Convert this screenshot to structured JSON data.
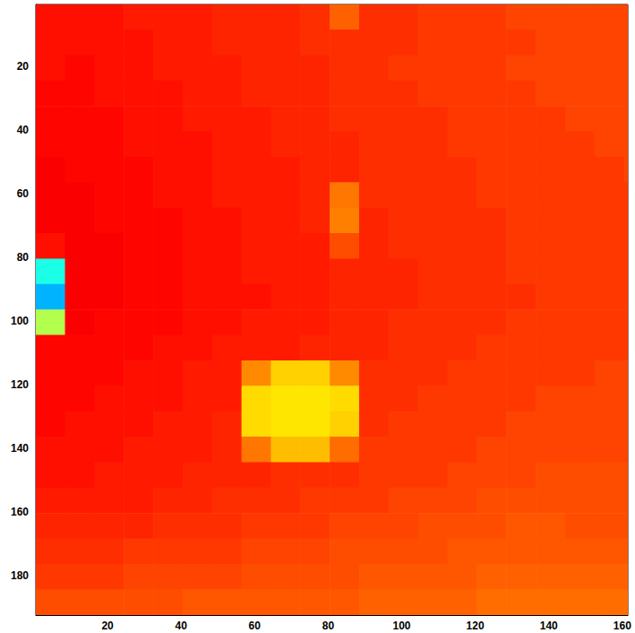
{
  "chart_data": {
    "type": "heatmap",
    "xlim": [
      0.5,
      161.5
    ],
    "ylim": [
      0.5,
      192.5
    ],
    "xticks": [
      20,
      40,
      60,
      80,
      100,
      120,
      140,
      160
    ],
    "yticks": [
      20,
      40,
      60,
      80,
      100,
      120,
      140,
      160,
      180
    ],
    "grid": false,
    "clim": [
      0,
      1
    ],
    "cell_x": [
      4.5,
      12.5,
      20.5,
      28.5,
      36.5,
      44.5,
      52.5,
      60.5,
      68.5,
      76.5,
      84.5,
      92.5,
      100.5,
      108.5,
      116.5,
      124.5,
      132.5,
      140.5,
      148.5,
      156.5,
      164.5
    ],
    "cell_y": [
      4.5,
      12.5,
      20.5,
      28.5,
      36.5,
      44.5,
      52.5,
      60.5,
      68.5,
      76.5,
      84.5,
      92.5,
      100.5,
      108.5,
      116.5,
      124.5,
      132.5,
      140.5,
      148.5,
      156.5,
      164.5,
      172.5,
      180.5,
      188.5
    ],
    "cells": [
      [
        0.86,
        0.86,
        0.86,
        0.85,
        0.85,
        0.85,
        0.84,
        0.84,
        0.84,
        0.83,
        0.78,
        0.83,
        0.83,
        0.82,
        0.82,
        0.82,
        0.81,
        0.81,
        0.81,
        0.81,
        0.81
      ],
      [
        0.86,
        0.86,
        0.86,
        0.86,
        0.85,
        0.85,
        0.84,
        0.84,
        0.84,
        0.83,
        0.83,
        0.83,
        0.83,
        0.82,
        0.82,
        0.82,
        0.82,
        0.81,
        0.81,
        0.81,
        0.81
      ],
      [
        0.86,
        0.87,
        0.86,
        0.86,
        0.85,
        0.85,
        0.85,
        0.84,
        0.84,
        0.84,
        0.83,
        0.83,
        0.82,
        0.82,
        0.82,
        0.82,
        0.81,
        0.81,
        0.81,
        0.81,
        0.81
      ],
      [
        0.87,
        0.87,
        0.86,
        0.86,
        0.86,
        0.85,
        0.85,
        0.84,
        0.84,
        0.84,
        0.83,
        0.83,
        0.83,
        0.82,
        0.82,
        0.82,
        0.82,
        0.81,
        0.81,
        0.81,
        0.81
      ],
      [
        0.87,
        0.87,
        0.87,
        0.86,
        0.86,
        0.85,
        0.85,
        0.85,
        0.84,
        0.84,
        0.83,
        0.83,
        0.83,
        0.83,
        0.82,
        0.82,
        0.82,
        0.82,
        0.81,
        0.81,
        0.81
      ],
      [
        0.87,
        0.87,
        0.87,
        0.86,
        0.86,
        0.86,
        0.85,
        0.85,
        0.84,
        0.84,
        0.84,
        0.83,
        0.83,
        0.83,
        0.82,
        0.82,
        0.82,
        0.82,
        0.82,
        0.81,
        0.81
      ],
      [
        0.88,
        0.87,
        0.87,
        0.87,
        0.86,
        0.86,
        0.85,
        0.85,
        0.85,
        0.84,
        0.84,
        0.83,
        0.83,
        0.83,
        0.83,
        0.82,
        0.82,
        0.82,
        0.82,
        0.82,
        0.81
      ],
      [
        0.88,
        0.88,
        0.87,
        0.87,
        0.86,
        0.86,
        0.85,
        0.85,
        0.85,
        0.84,
        0.76,
        0.83,
        0.83,
        0.83,
        0.83,
        0.82,
        0.82,
        0.82,
        0.82,
        0.82,
        0.82
      ],
      [
        0.88,
        0.88,
        0.87,
        0.87,
        0.87,
        0.86,
        0.86,
        0.85,
        0.85,
        0.84,
        0.75,
        0.84,
        0.83,
        0.83,
        0.83,
        0.83,
        0.82,
        0.82,
        0.82,
        0.82,
        0.82
      ],
      [
        0.86,
        0.88,
        0.88,
        0.87,
        0.87,
        0.86,
        0.86,
        0.85,
        0.85,
        0.85,
        0.8,
        0.84,
        0.83,
        0.83,
        0.83,
        0.83,
        0.82,
        0.82,
        0.82,
        0.82,
        0.82
      ],
      [
        0.4,
        0.88,
        0.88,
        0.87,
        0.87,
        0.86,
        0.86,
        0.85,
        0.85,
        0.85,
        0.84,
        0.84,
        0.84,
        0.83,
        0.83,
        0.83,
        0.82,
        0.82,
        0.82,
        0.82,
        0.82
      ],
      [
        0.3,
        0.88,
        0.88,
        0.87,
        0.87,
        0.86,
        0.86,
        0.86,
        0.85,
        0.85,
        0.84,
        0.84,
        0.84,
        0.83,
        0.83,
        0.83,
        0.83,
        0.82,
        0.82,
        0.82,
        0.82
      ],
      [
        0.55,
        0.88,
        0.87,
        0.87,
        0.87,
        0.86,
        0.86,
        0.85,
        0.85,
        0.85,
        0.84,
        0.84,
        0.83,
        0.83,
        0.83,
        0.83,
        0.82,
        0.82,
        0.82,
        0.82,
        0.82
      ],
      [
        0.87,
        0.87,
        0.87,
        0.87,
        0.86,
        0.86,
        0.85,
        0.85,
        0.85,
        0.84,
        0.84,
        0.84,
        0.83,
        0.83,
        0.83,
        0.82,
        0.82,
        0.82,
        0.82,
        0.82,
        0.82
      ],
      [
        0.87,
        0.87,
        0.87,
        0.86,
        0.86,
        0.85,
        0.85,
        0.74,
        0.67,
        0.67,
        0.74,
        0.83,
        0.83,
        0.83,
        0.82,
        0.82,
        0.82,
        0.82,
        0.82,
        0.81,
        0.81
      ],
      [
        0.87,
        0.87,
        0.86,
        0.86,
        0.86,
        0.85,
        0.85,
        0.66,
        0.65,
        0.65,
        0.66,
        0.83,
        0.83,
        0.82,
        0.82,
        0.82,
        0.82,
        0.81,
        0.81,
        0.81,
        0.81
      ],
      [
        0.87,
        0.86,
        0.86,
        0.86,
        0.85,
        0.85,
        0.84,
        0.66,
        0.65,
        0.65,
        0.67,
        0.83,
        0.82,
        0.82,
        0.82,
        0.82,
        0.81,
        0.81,
        0.81,
        0.81,
        0.81
      ],
      [
        0.86,
        0.86,
        0.86,
        0.85,
        0.85,
        0.85,
        0.84,
        0.76,
        0.69,
        0.69,
        0.77,
        0.82,
        0.82,
        0.82,
        0.82,
        0.81,
        0.81,
        0.81,
        0.81,
        0.81,
        0.81
      ],
      [
        0.86,
        0.86,
        0.85,
        0.85,
        0.85,
        0.84,
        0.84,
        0.84,
        0.83,
        0.83,
        0.83,
        0.82,
        0.82,
        0.82,
        0.81,
        0.81,
        0.81,
        0.8,
        0.8,
        0.8,
        0.8
      ],
      [
        0.85,
        0.85,
        0.85,
        0.85,
        0.84,
        0.84,
        0.83,
        0.83,
        0.83,
        0.82,
        0.82,
        0.82,
        0.81,
        0.81,
        0.81,
        0.8,
        0.8,
        0.8,
        0.8,
        0.8,
        0.8
      ],
      [
        0.84,
        0.84,
        0.84,
        0.84,
        0.83,
        0.83,
        0.83,
        0.82,
        0.82,
        0.82,
        0.81,
        0.81,
        0.81,
        0.8,
        0.8,
        0.8,
        0.79,
        0.79,
        0.8,
        0.8,
        0.8
      ],
      [
        0.83,
        0.83,
        0.83,
        0.82,
        0.82,
        0.82,
        0.82,
        0.81,
        0.81,
        0.81,
        0.8,
        0.8,
        0.8,
        0.8,
        0.79,
        0.79,
        0.79,
        0.79,
        0.79,
        0.79,
        0.79
      ],
      [
        0.82,
        0.82,
        0.82,
        0.81,
        0.81,
        0.81,
        0.81,
        0.8,
        0.8,
        0.8,
        0.8,
        0.79,
        0.79,
        0.79,
        0.79,
        0.78,
        0.78,
        0.78,
        0.78,
        0.78,
        0.78
      ],
      [
        0.8,
        0.8,
        0.8,
        0.8,
        0.8,
        0.79,
        0.79,
        0.79,
        0.79,
        0.79,
        0.79,
        0.78,
        0.78,
        0.78,
        0.78,
        0.77,
        0.77,
        0.77,
        0.77,
        0.77,
        0.77
      ]
    ]
  }
}
